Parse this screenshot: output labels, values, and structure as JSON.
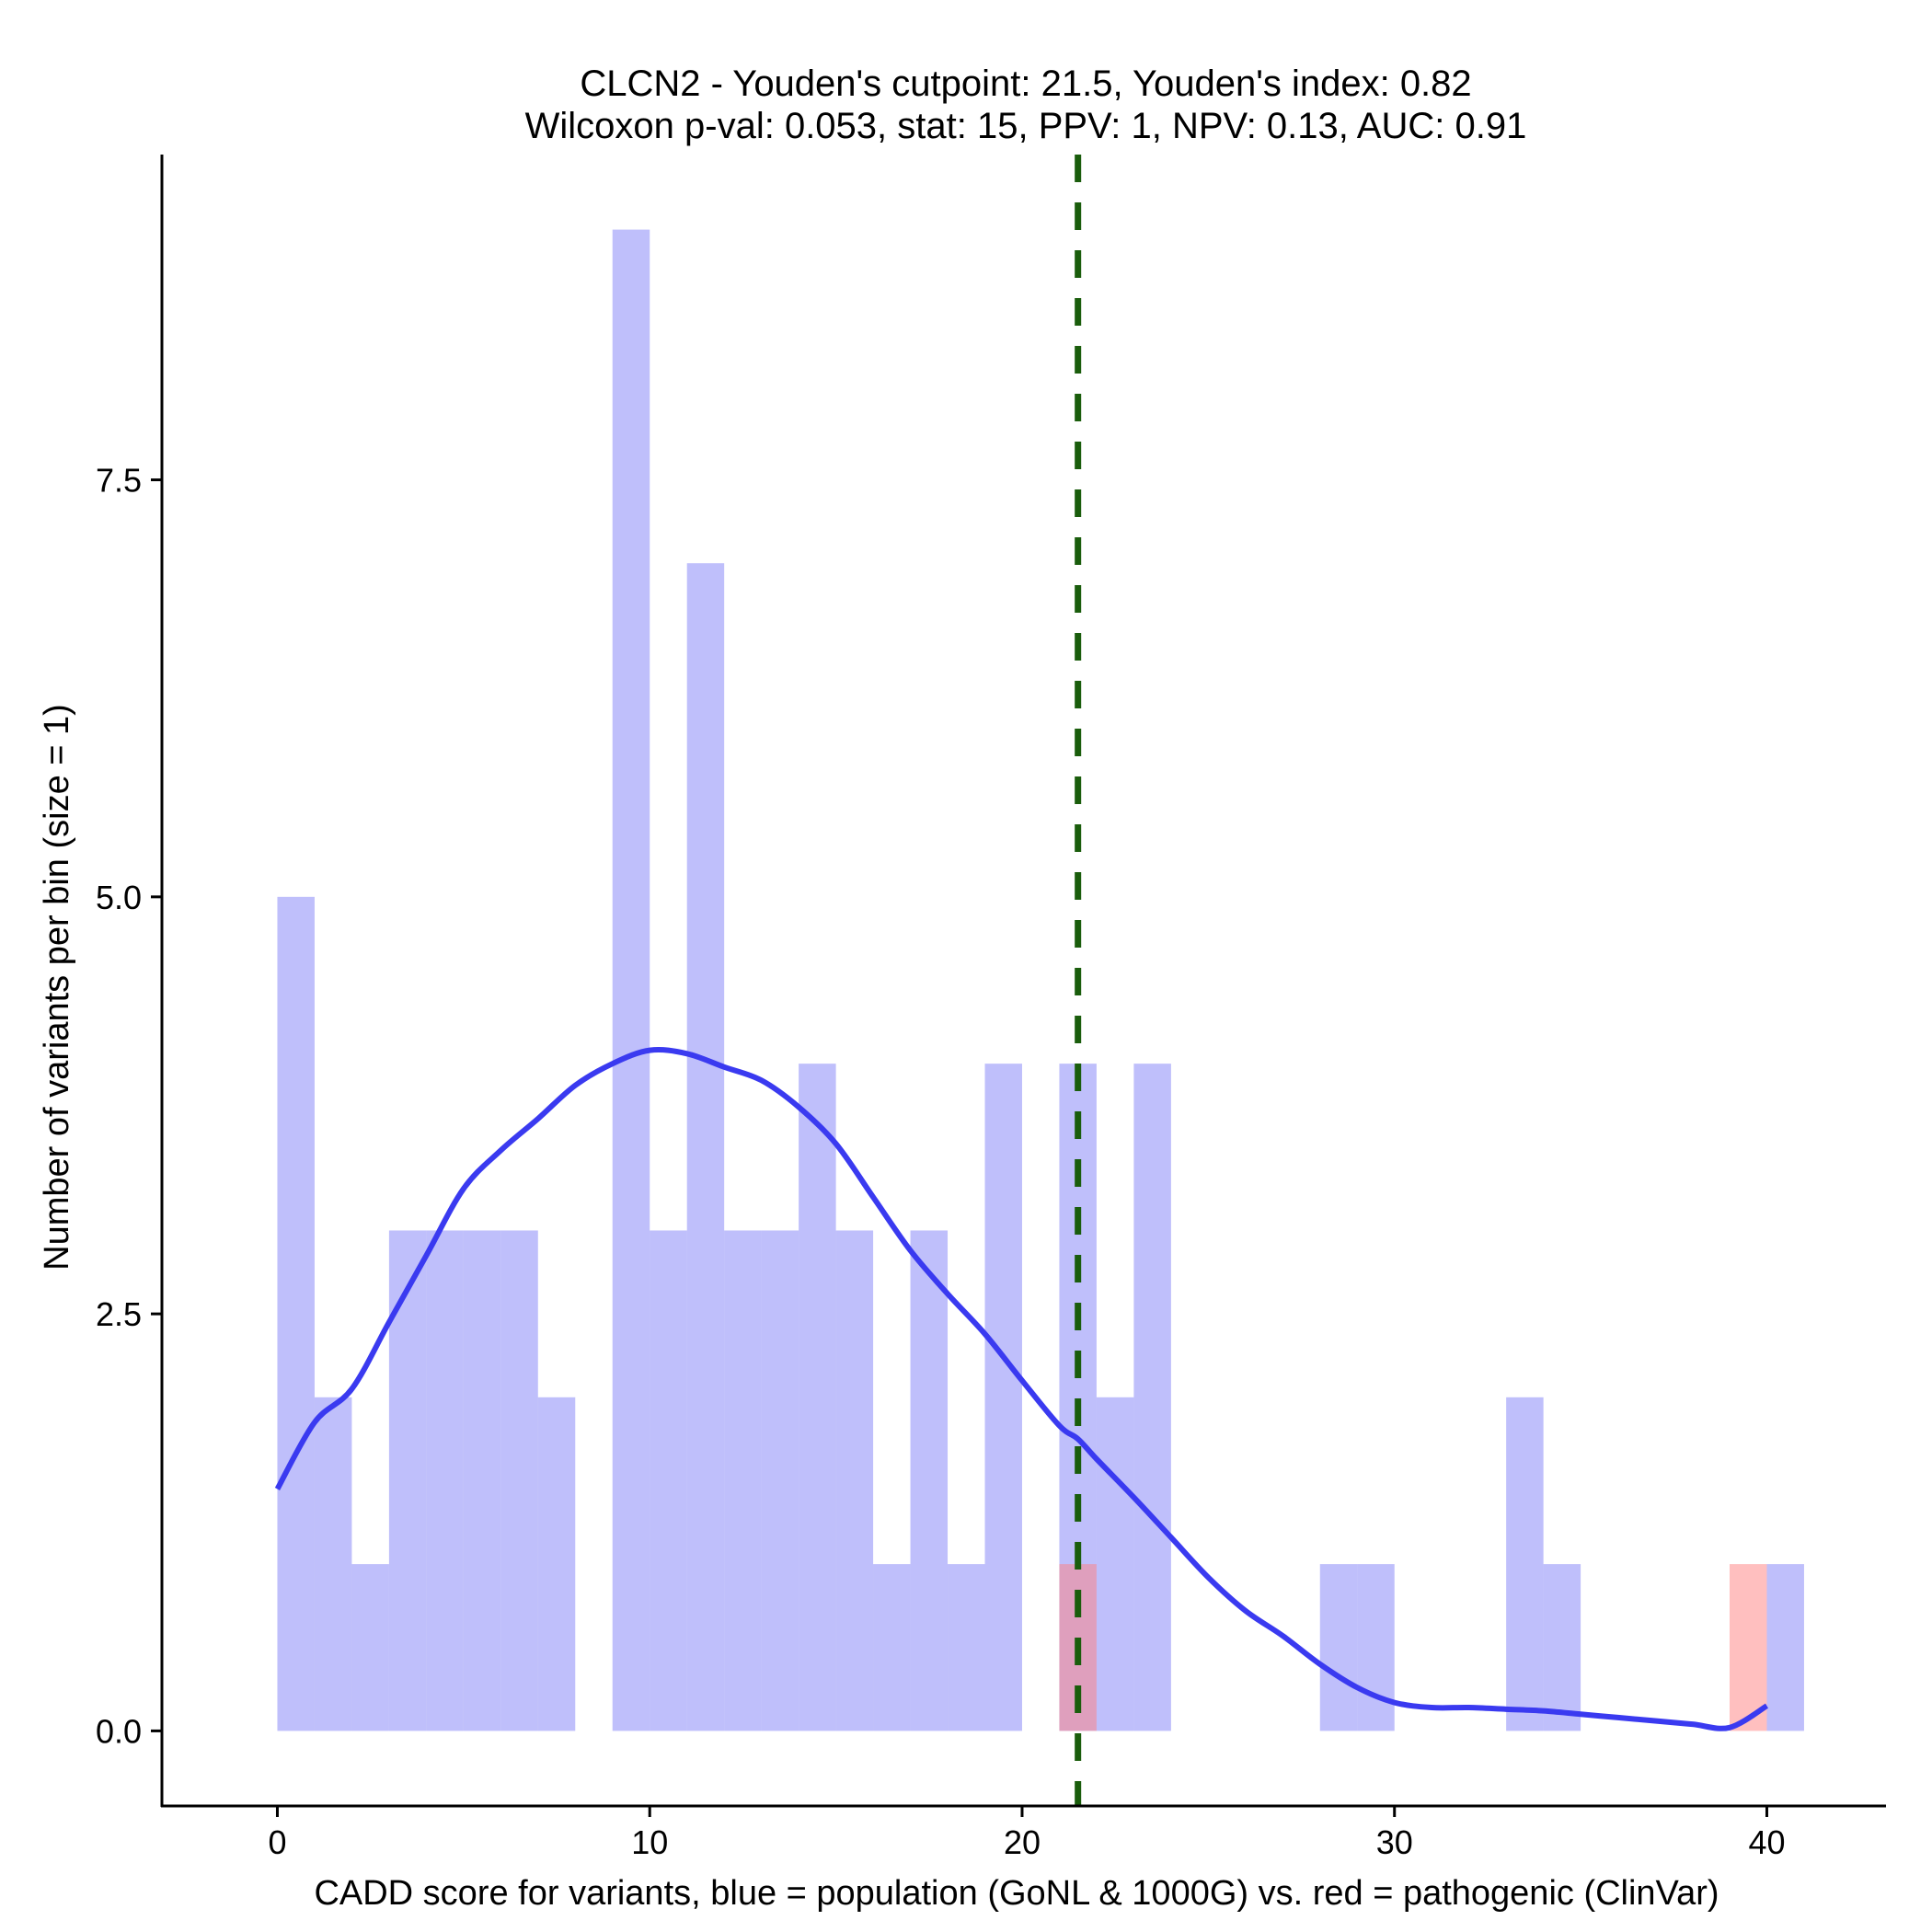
{
  "chart_data": {
    "type": "histogram",
    "title_line1": "CLCN2 - Youden's cutpoint: 21.5, Youden's index: 0.82",
    "title_line2": "Wilcoxon p-val: 0.053, stat: 15, PPV: 1, NPV: 0.13, AUC: 0.91",
    "xlabel": "CADD score for variants, blue = population (GoNL & 1000G) vs. red = pathogenic (ClinVar)",
    "ylabel": "Number of variants per bin (size = 1)",
    "xlim": [
      -3.1,
      43.2
    ],
    "ylim": [
      -0.45,
      9.45
    ],
    "x_ticks": [
      0,
      10,
      20,
      30,
      40
    ],
    "x_tick_labels": [
      "0",
      "10",
      "20",
      "30",
      "40"
    ],
    "y_ticks": [
      0,
      2.5,
      5,
      7.5
    ],
    "y_tick_labels": [
      "0.0",
      "2.5",
      "5.0",
      "7.5"
    ],
    "bin_width": 1,
    "series": [
      {
        "name": "population (GoNL & 1000G)",
        "color": "#8080f8",
        "opacity": 0.5,
        "bins": [
          {
            "x0": 0,
            "count": 5
          },
          {
            "x0": 1,
            "count": 2
          },
          {
            "x0": 2,
            "count": 1
          },
          {
            "x0": 3,
            "count": 3
          },
          {
            "x0": 4,
            "count": 3
          },
          {
            "x0": 5,
            "count": 3
          },
          {
            "x0": 6,
            "count": 3
          },
          {
            "x0": 7,
            "count": 2
          },
          {
            "x0": 9,
            "count": 9
          },
          {
            "x0": 10,
            "count": 3
          },
          {
            "x0": 11,
            "count": 7
          },
          {
            "x0": 12,
            "count": 3
          },
          {
            "x0": 13,
            "count": 3
          },
          {
            "x0": 14,
            "count": 4
          },
          {
            "x0": 15,
            "count": 3
          },
          {
            "x0": 16,
            "count": 1
          },
          {
            "x0": 17,
            "count": 3
          },
          {
            "x0": 18,
            "count": 1
          },
          {
            "x0": 19,
            "count": 4
          },
          {
            "x0": 21,
            "count": 4
          },
          {
            "x0": 22,
            "count": 2
          },
          {
            "x0": 23,
            "count": 4
          },
          {
            "x0": 28,
            "count": 1
          },
          {
            "x0": 29,
            "count": 1
          },
          {
            "x0": 33,
            "count": 2
          },
          {
            "x0": 34,
            "count": 1
          },
          {
            "x0": 40,
            "count": 1
          }
        ]
      },
      {
        "name": "pathogenic (ClinVar)",
        "color": "#ff8080",
        "opacity": 0.5,
        "bins": [
          {
            "x0": 21,
            "count": 1
          },
          {
            "x0": 39,
            "count": 1
          }
        ]
      }
    ],
    "density_line": {
      "name": "population density (scaled)",
      "color": "#3a3af0",
      "x": [
        0,
        1,
        2,
        3,
        4,
        5,
        6,
        7,
        8,
        9,
        10,
        11,
        12,
        13,
        14,
        15,
        16,
        17,
        18,
        19,
        20,
        21,
        21.5,
        22,
        23,
        24,
        25,
        26,
        27,
        28,
        29,
        30,
        31,
        32,
        33,
        34,
        35,
        36,
        37,
        38,
        39,
        40
      ],
      "y": [
        1.45,
        1.85,
        2.05,
        2.45,
        2.85,
        3.25,
        3.48,
        3.67,
        3.87,
        4.0,
        4.08,
        4.06,
        3.98,
        3.9,
        3.74,
        3.52,
        3.2,
        2.88,
        2.62,
        2.38,
        2.1,
        1.83,
        1.75,
        1.63,
        1.4,
        1.16,
        0.92,
        0.72,
        0.57,
        0.4,
        0.26,
        0.17,
        0.14,
        0.14,
        0.13,
        0.12,
        0.1,
        0.08,
        0.06,
        0.04,
        0.02,
        0.15
      ]
    },
    "cutpoint": {
      "x": 21.5,
      "label": "Youden's cutpoint",
      "color": "#1a5d0c"
    }
  }
}
